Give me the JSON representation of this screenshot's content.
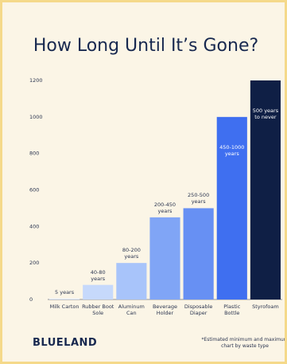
{
  "chart_data": {
    "type": "bar",
    "title": "How Long Until It’s Gone?",
    "categories": [
      "Milk Carton",
      "Rubber Boot Sole",
      "Aluminum Can",
      "Beverage Holder",
      "Disposable Diaper",
      "Plastic Bottle",
      "Styrofoam"
    ],
    "values": [
      5,
      80,
      200,
      450,
      500,
      1000,
      1200
    ],
    "annotations": [
      "5 years",
      "40-80 years",
      "80-200 years",
      "200-450 years",
      "250-500 years",
      "450-1000 years",
      "500 years to never"
    ],
    "colors": [
      "#e3edfd",
      "#c6d9fb",
      "#a8c4fa",
      "#80a5f6",
      "#6790f3",
      "#3f6ff0",
      "#0f1f45"
    ],
    "ylim": [
      0,
      1200
    ],
    "yticks": [
      0,
      200,
      400,
      600,
      800,
      1000,
      1200
    ],
    "brand": "BLUELAND",
    "footnote": "*Estimated minimum and maximum chart by waste type"
  }
}
